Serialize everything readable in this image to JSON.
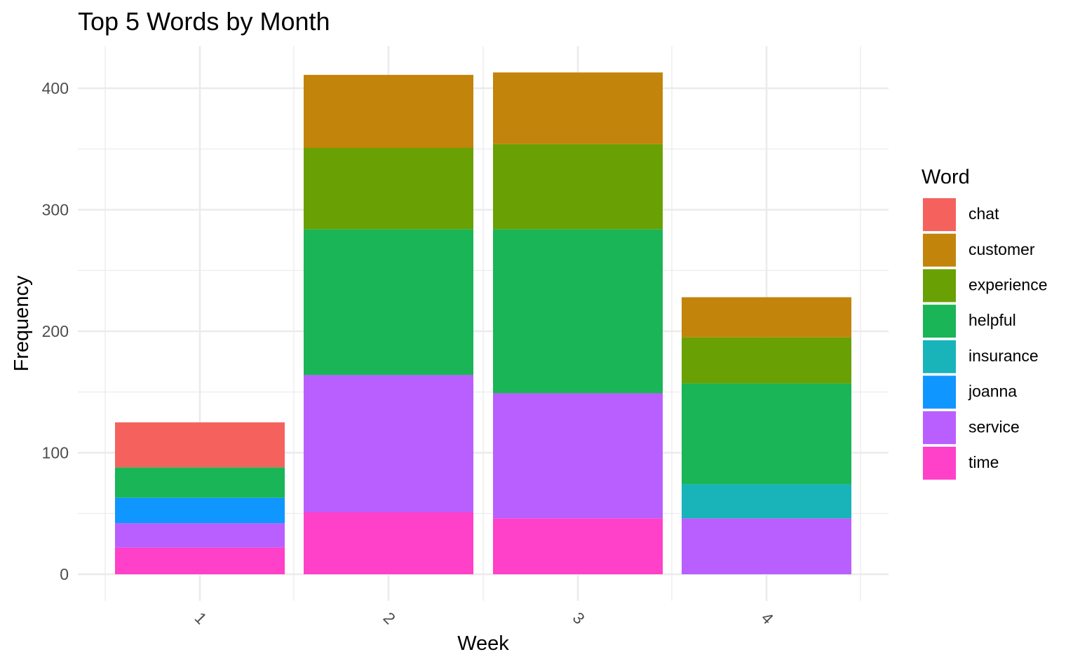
{
  "chart_data": {
    "type": "bar",
    "stacked": true,
    "title": "Top 5 Words by Month",
    "xlabel": "Week",
    "ylabel": "Frequency",
    "categories": [
      "1",
      "2",
      "3",
      "4"
    ],
    "ylim": [
      0,
      420
    ],
    "yticks": [
      0,
      100,
      200,
      300,
      400
    ],
    "grid": true,
    "legend": {
      "title": "Word",
      "position": "right"
    },
    "series": [
      {
        "name": "time",
        "color": "#FF40C8",
        "values": [
          22,
          51,
          46,
          0
        ]
      },
      {
        "name": "service",
        "color": "#B95FFF",
        "values": [
          20,
          113,
          103,
          46
        ]
      },
      {
        "name": "joanna",
        "color": "#1096FF",
        "values": [
          21,
          0,
          0,
          0
        ]
      },
      {
        "name": "insurance",
        "color": "#18B4BA",
        "values": [
          0,
          0,
          0,
          28
        ]
      },
      {
        "name": "helpful",
        "color": "#1AB556",
        "values": [
          25,
          120,
          135,
          83
        ]
      },
      {
        "name": "experience",
        "color": "#69A104",
        "values": [
          0,
          67,
          70,
          38
        ]
      },
      {
        "name": "customer",
        "color": "#C2840A",
        "values": [
          0,
          60,
          59,
          33
        ]
      },
      {
        "name": "chat",
        "color": "#F5625D",
        "values": [
          37,
          0,
          0,
          0
        ]
      }
    ],
    "legend_order": [
      "chat",
      "customer",
      "experience",
      "helpful",
      "insurance",
      "joanna",
      "service",
      "time"
    ]
  }
}
